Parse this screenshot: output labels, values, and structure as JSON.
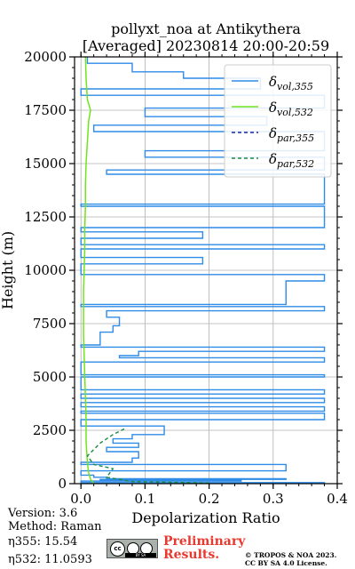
{
  "chart_data": {
    "type": "line",
    "title": "pollyxt_noa at Antikythera",
    "subtitle": "[Averaged] 20230814 20:00-20:59",
    "xlabel": "Depolarization Ratio",
    "ylabel": "Height (m)",
    "xlim": [
      -0.01,
      0.4
    ],
    "ylim": [
      0,
      20000
    ],
    "xticks": [
      "0.0",
      "0.1",
      "0.2",
      "0.3",
      "0.4"
    ],
    "yticks": [
      "0",
      "2500",
      "5000",
      "7500",
      "10000",
      "12500",
      "15000",
      "17500",
      "20000"
    ],
    "grid": true,
    "legend_position": "top-right",
    "series": [
      {
        "name": "δvol,355",
        "color": "#2e8be6",
        "style": "solid",
        "points": [
          [
            0.0,
            0
          ],
          [
            0.38,
            50
          ],
          [
            0.0,
            120
          ],
          [
            0.25,
            150
          ],
          [
            0.03,
            200
          ],
          [
            0.32,
            230
          ],
          [
            0.04,
            300
          ],
          [
            0.02,
            400
          ],
          [
            0.0,
            600
          ],
          [
            0.32,
            900
          ],
          [
            0.0,
            1000
          ],
          [
            0.08,
            1200
          ],
          [
            0.09,
            1500
          ],
          [
            0.04,
            1700
          ],
          [
            0.09,
            1900
          ],
          [
            0.05,
            2100
          ],
          [
            0.08,
            2300
          ],
          [
            0.13,
            2700
          ],
          [
            0.0,
            3000
          ],
          [
            0.38,
            3300
          ],
          [
            0.0,
            3400
          ],
          [
            0.38,
            3600
          ],
          [
            0.0,
            3800
          ],
          [
            0.38,
            4000
          ],
          [
            0.0,
            4200
          ],
          [
            0.38,
            4400
          ],
          [
            0.0,
            5000
          ],
          [
            0.38,
            5100
          ],
          [
            0.0,
            5700
          ],
          [
            0.38,
            5900
          ],
          [
            0.06,
            6000
          ],
          [
            0.09,
            6200
          ],
          [
            0.38,
            6400
          ],
          [
            0.0,
            6500
          ],
          [
            0.03,
            7100
          ],
          [
            0.05,
            7400
          ],
          [
            0.06,
            7800
          ],
          [
            0.04,
            8100
          ],
          [
            0.38,
            8300
          ],
          [
            0.0,
            8400
          ],
          [
            0.32,
            9500
          ],
          [
            0.38,
            9800
          ],
          [
            0.0,
            10300
          ],
          [
            0.19,
            10600
          ],
          [
            0.0,
            11000
          ],
          [
            0.38,
            11200
          ],
          [
            0.0,
            11500
          ],
          [
            0.19,
            11800
          ],
          [
            0.0,
            12000
          ],
          [
            0.38,
            13000
          ],
          [
            0.0,
            13100
          ],
          [
            0.38,
            14500
          ],
          [
            0.04,
            14700
          ],
          [
            0.38,
            15300
          ],
          [
            0.1,
            15600
          ],
          [
            0.38,
            16500
          ],
          [
            0.02,
            16800
          ],
          [
            0.29,
            17200
          ],
          [
            0.1,
            17600
          ],
          [
            0.38,
            18200
          ],
          [
            0.0,
            18500
          ],
          [
            0.28,
            19000
          ],
          [
            0.16,
            19300
          ],
          [
            0.08,
            19700
          ],
          [
            0.01,
            20000
          ]
        ]
      },
      {
        "name": "δvol,532",
        "color": "#6fe61c",
        "style": "solid",
        "points": [
          [
            0.02,
            0
          ],
          [
            0.015,
            200
          ],
          [
            0.012,
            500
          ],
          [
            0.01,
            1000
          ],
          [
            0.008,
            2000
          ],
          [
            0.008,
            3000
          ],
          [
            0.007,
            4000
          ],
          [
            0.006,
            5000
          ],
          [
            0.005,
            6000
          ],
          [
            0.004,
            7000
          ],
          [
            0.004,
            8000
          ],
          [
            0.004,
            9000
          ],
          [
            0.005,
            10000
          ],
          [
            0.006,
            11000
          ],
          [
            0.006,
            12000
          ],
          [
            0.007,
            13000
          ],
          [
            0.007,
            14000
          ],
          [
            0.008,
            15000
          ],
          [
            0.01,
            16000
          ],
          [
            0.012,
            17000
          ],
          [
            0.015,
            17500
          ],
          [
            0.01,
            18000
          ],
          [
            0.008,
            19000
          ],
          [
            0.007,
            20000
          ]
        ]
      },
      {
        "name": "δpar,355",
        "color": "#1a22a8",
        "style": "dashed",
        "points": []
      },
      {
        "name": "δpar,532",
        "color": "#1a8a3e",
        "style": "dashed",
        "points": [
          [
            0.2,
            30
          ],
          [
            0.08,
            100
          ],
          [
            0.04,
            300
          ],
          [
            0.05,
            700
          ],
          [
            0.02,
            900
          ],
          [
            0.01,
            1300
          ],
          [
            0.03,
            1900
          ],
          [
            0.05,
            2300
          ],
          [
            0.07,
            2600
          ]
        ]
      }
    ]
  },
  "info": {
    "version": "Version: 3.6",
    "method": "Method: Raman",
    "eta355": "η355:  15.54",
    "eta532": "η532: 11.0593"
  },
  "footer": {
    "preliminary_line1": "Preliminary",
    "preliminary_line2": "Results.",
    "copyright_line1": "© TROPOS & NOA 2023.",
    "copyright_line2": "CC BY SA 4.0 License.",
    "license_logo": "cc-by-sa-logo"
  }
}
